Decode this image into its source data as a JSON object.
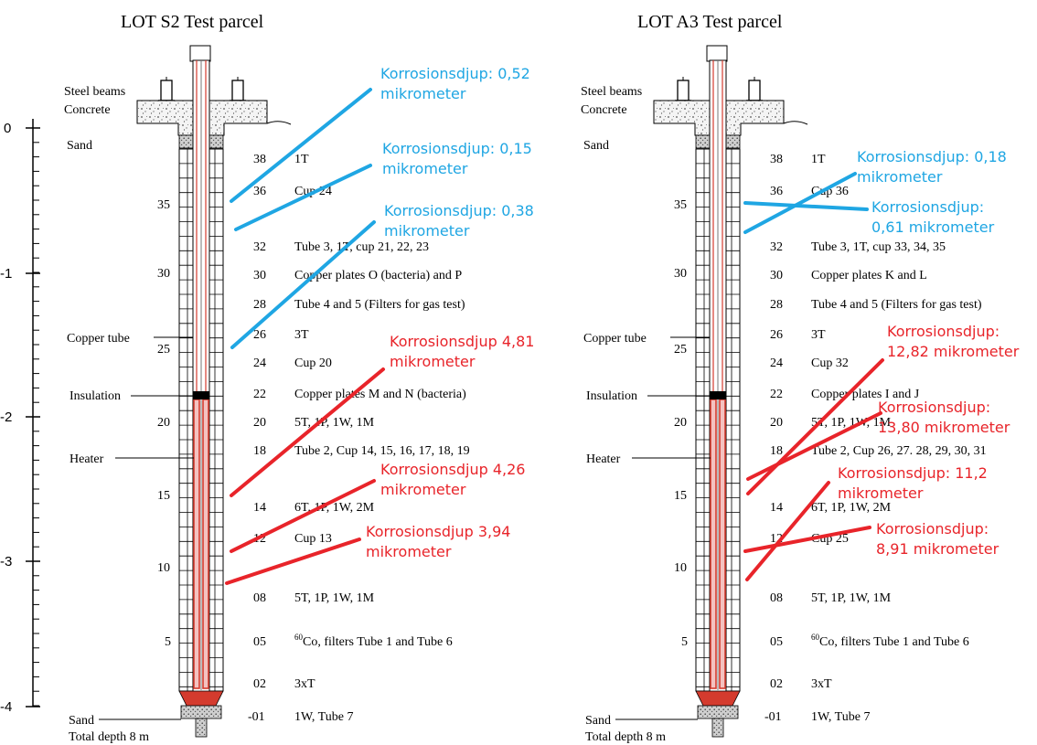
{
  "colors": {
    "blue": "#1fa6e3",
    "red": "#e8242a",
    "heater": "#d43b2e",
    "ink": "#000000"
  },
  "depth_axis": [
    "0",
    "-1",
    "-2",
    "-3",
    "-4"
  ],
  "parcels": [
    {
      "title": "LOT S2 Test parcel",
      "left_labels": {
        "steel": "Steel beams",
        "concrete": "Concrete",
        "sand_top": "Sand",
        "copper_tube": "Copper tube",
        "insulation": "Insulation",
        "heater": "Heater",
        "sand_bottom": "Sand",
        "total_depth": "Total depth 8 m"
      },
      "block_ticks": [
        "35",
        "30",
        "25",
        "20",
        "15",
        "10",
        "5"
      ],
      "items": [
        {
          "num": "38",
          "text": "1T"
        },
        {
          "num": "36",
          "text": "Cup 24"
        },
        {
          "num": "32",
          "text": "Tube 3, 1T, cup 21, 22, 23"
        },
        {
          "num": "30",
          "text": "Copper plates O (bacteria) and P"
        },
        {
          "num": "28",
          "text": "Tube 4 and 5 (Filters for gas test)"
        },
        {
          "num": "26",
          "text": "3T"
        },
        {
          "num": "24",
          "text": "Cup 20"
        },
        {
          "num": "22",
          "text": "Copper plates M and N (bacteria)"
        },
        {
          "num": "20",
          "text": "5T, 1P, 1W, 1M"
        },
        {
          "num": "18",
          "text": "Tube 2, Cup 14, 15, 16, 17, 18, 19"
        },
        {
          "num": "14",
          "text": "6T, 1P, 1W, 2M"
        },
        {
          "num": "12",
          "text": "Cup 13"
        },
        {
          "num": "08",
          "text": "5T, 1P, 1W, 1M"
        },
        {
          "num": "05",
          "text": "filters Tube 1 and Tube 6",
          "sup": "60",
          "pre": "Co, "
        },
        {
          "num": "02",
          "text": "3xT"
        },
        {
          "num": "-01",
          "text": "1W, Tube 7"
        }
      ],
      "annotations": [
        {
          "color": "blue",
          "lines": [
            "Korrosionsdjup: 0,52",
            "mikrometer"
          ]
        },
        {
          "color": "blue",
          "lines": [
            "Korrosionsdjup: 0,15",
            "mikrometer"
          ]
        },
        {
          "color": "blue",
          "lines": [
            "Korrosionsdjup: 0,38",
            "mikrometer"
          ]
        },
        {
          "color": "red",
          "lines": [
            "Korrosionsdjup 4,81",
            "mikrometer"
          ]
        },
        {
          "color": "red",
          "lines": [
            "Korrosionsdjup 4,26",
            "mikrometer"
          ]
        },
        {
          "color": "red",
          "lines": [
            "Korrosionsdjup 3,94",
            "mikrometer"
          ]
        }
      ]
    },
    {
      "title": "LOT A3 Test parcel",
      "left_labels": {
        "steel": "Steel beams",
        "concrete": "Concrete",
        "sand_top": "Sand",
        "copper_tube": "Copper tube",
        "insulation": "Insulation",
        "heater": "Heater",
        "sand_bottom": "Sand",
        "total_depth": "Total depth 8 m"
      },
      "block_ticks": [
        "35",
        "30",
        "25",
        "20",
        "15",
        "10",
        "5"
      ],
      "items": [
        {
          "num": "38",
          "text": "1T"
        },
        {
          "num": "36",
          "text": "Cup 36"
        },
        {
          "num": "32",
          "text": "Tube 3, 1T, cup 33, 34, 35"
        },
        {
          "num": "30",
          "text": "Copper plates K and L"
        },
        {
          "num": "28",
          "text": "Tube 4 and 5 (Filters for gas test)"
        },
        {
          "num": "26",
          "text": "3T"
        },
        {
          "num": "24",
          "text": "Cup 32"
        },
        {
          "num": "22",
          "text": "Copper plates I and J"
        },
        {
          "num": "20",
          "text": "5T, 1P, 1W, 1M"
        },
        {
          "num": "18",
          "text": "Tube 2, Cup 26, 27. 28, 29, 30, 31"
        },
        {
          "num": "14",
          "text": "6T, 1P, 1W, 2M"
        },
        {
          "num": "12",
          "text": "Cup 25"
        },
        {
          "num": "08",
          "text": "5T, 1P, 1W, 1M"
        },
        {
          "num": "05",
          "text": "filters Tube 1 and Tube 6",
          "sup": "60",
          "pre": "Co, "
        },
        {
          "num": "02",
          "text": "3xT"
        },
        {
          "num": "-01",
          "text": "1W, Tube 7"
        }
      ],
      "annotations": [
        {
          "color": "blue",
          "lines": [
            "Korrosionsdjup: 0,18",
            "mikrometer"
          ]
        },
        {
          "color": "blue",
          "lines": [
            "Korrosionsdjup:",
            "0,61 mikrometer"
          ]
        },
        {
          "color": "red",
          "lines": [
            "Korrosionsdjup:",
            "12,82 mikrometer"
          ]
        },
        {
          "color": "red",
          "lines": [
            "Korrosionsdjup:",
            "13,80 mikrometer"
          ]
        },
        {
          "color": "red",
          "lines": [
            "Korrosionsdjup: 11,2",
            "mikrometer"
          ]
        },
        {
          "color": "red",
          "lines": [
            "Korrosionsdjup:",
            "8,91 mikrometer"
          ]
        }
      ]
    }
  ]
}
